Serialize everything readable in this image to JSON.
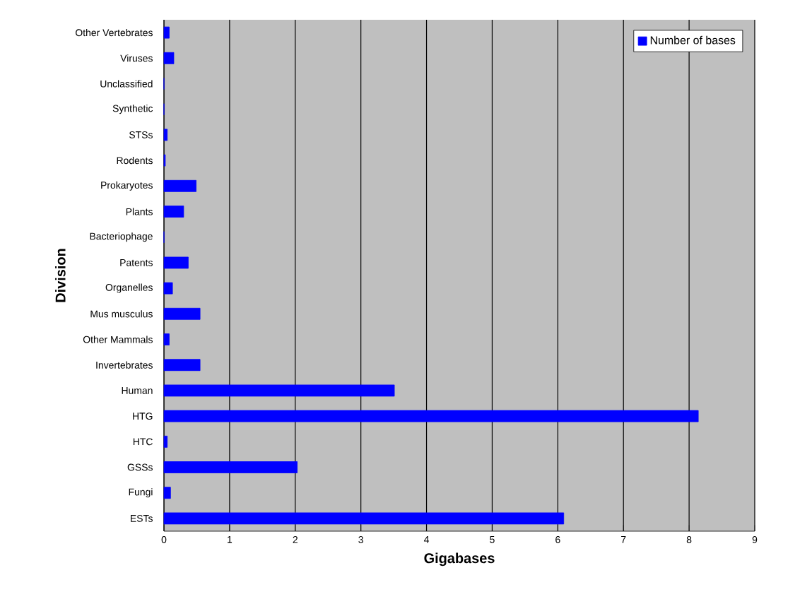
{
  "chart_data": {
    "type": "bar",
    "orientation": "horizontal",
    "xlabel": "Gigabases",
    "ylabel": "Division",
    "categories": [
      "Other Vertebrates",
      "Viruses",
      "Unclassified",
      "Synthetic",
      "STSs",
      "Rodents",
      "Prokaryotes",
      "Plants",
      "Bacteriophage",
      "Patents",
      "Organelles",
      "Mus musculus",
      "Other Mammals",
      "Invertebrates",
      "Human",
      "HTG",
      "HTC",
      "GSSs",
      "Fungi",
      "ESTs"
    ],
    "series": [
      {
        "name": "Number of bases",
        "color": "#0000ff",
        "values": [
          0.08,
          0.15,
          0,
          0,
          0.05,
          0.02,
          0.49,
          0.3,
          0,
          0.37,
          0.13,
          0.55,
          0.08,
          0.55,
          3.51,
          8.14,
          0.05,
          2.03,
          0.1,
          6.09
        ]
      }
    ],
    "xlim": [
      0,
      9
    ],
    "xticks": [
      0,
      1,
      2,
      3,
      4,
      5,
      6,
      7,
      8,
      9
    ],
    "grid": "x",
    "legend": "top right"
  }
}
